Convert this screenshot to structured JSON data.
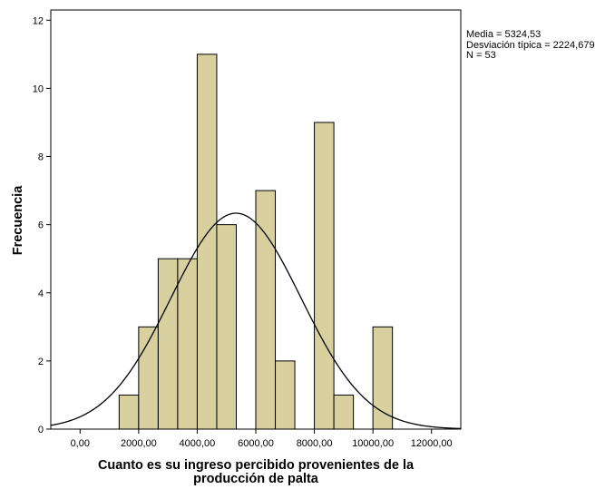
{
  "chart_data": {
    "type": "histogram",
    "title": "",
    "xlabel": "Cuanto es su ingreso percibido  provenientes de la producción de palta",
    "xlabel_lines": [
      "Cuanto es su ingreso percibido  provenientes de la",
      "producción de palta"
    ],
    "ylabel": "Frecuencia",
    "xlim": [
      -1000,
      13000
    ],
    "ylim": [
      0,
      12.3
    ],
    "x_ticks": [
      0,
      2000,
      4000,
      6000,
      8000,
      10000,
      12000
    ],
    "x_tick_labels": [
      "0,00",
      "2000,00",
      "4000,00",
      "6000,00",
      "8000,00",
      "10000,00",
      "12000,00"
    ],
    "y_ticks": [
      0,
      2,
      4,
      6,
      8,
      10,
      12
    ],
    "y_tick_labels": [
      "0",
      "2",
      "4",
      "6",
      "8",
      "10",
      "12"
    ],
    "bin_width": 666.67,
    "bins": [
      {
        "start": 1333.33,
        "end": 2000.0,
        "count": 1
      },
      {
        "start": 2000.0,
        "end": 2666.67,
        "count": 3
      },
      {
        "start": 2666.67,
        "end": 3333.33,
        "count": 5
      },
      {
        "start": 3333.33,
        "end": 4000.0,
        "count": 5
      },
      {
        "start": 4000.0,
        "end": 4666.67,
        "count": 11
      },
      {
        "start": 4666.67,
        "end": 5333.33,
        "count": 6
      },
      {
        "start": 5333.33,
        "end": 6000.0,
        "count": 0
      },
      {
        "start": 6000.0,
        "end": 6666.67,
        "count": 7
      },
      {
        "start": 6666.67,
        "end": 7333.33,
        "count": 2
      },
      {
        "start": 7333.33,
        "end": 8000.0,
        "count": 0
      },
      {
        "start": 8000.0,
        "end": 8666.67,
        "count": 9
      },
      {
        "start": 8666.67,
        "end": 9333.33,
        "count": 1
      },
      {
        "start": 9333.33,
        "end": 10000.0,
        "count": 0
      },
      {
        "start": 10000.0,
        "end": 10666.67,
        "count": 3
      }
    ],
    "normal_curve": {
      "mean": 5324.53,
      "sd": 2224.679,
      "n": 53
    },
    "bar_color": "#d8d19f",
    "bar_edge_color": "#000000",
    "plot_background": "#ffffff",
    "grid": false,
    "legend": "none"
  },
  "stats": {
    "mean_line": "Media = 5324,53",
    "sd_line": "Desviación típica = 2224,679",
    "n_line": "N = 53"
  }
}
